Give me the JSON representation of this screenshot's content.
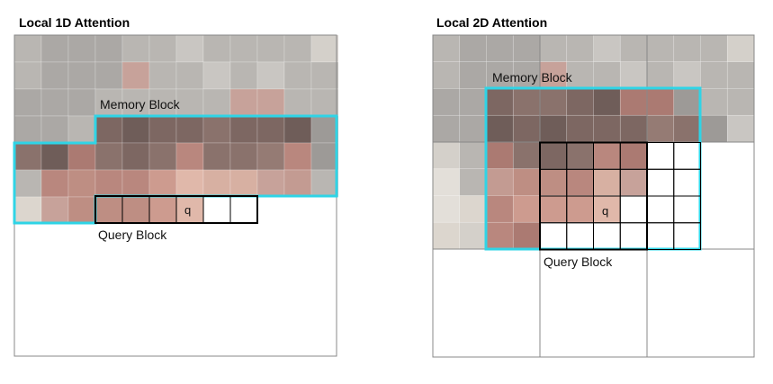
{
  "panels": [
    {
      "title": "Local 1D Attention",
      "memory_label": "Memory Block",
      "query_label": "Query Block",
      "query_symbol": "q"
    },
    {
      "title": "Local 2D Attention",
      "memory_label": "Memory Block",
      "query_label": "Query Block",
      "query_symbol": "q"
    }
  ],
  "colors": {
    "highlight": "#2fd4e6",
    "query_border": "#000000",
    "grid_line": "#888888",
    "cell_line": "#ffffff"
  },
  "palette": {
    "g1": "#c9c6c2",
    "g2": "#b9b6b2",
    "g3": "#aba8a5",
    "g4": "#9d9a97",
    "p1": "#c7a29a",
    "p2": "#c39b92",
    "p3": "#b9877e",
    "p4": "#ab7a72",
    "d1": "#7d6762",
    "d2": "#6f5d59",
    "d3": "#8a726c",
    "d4": "#957b74",
    "s1": "#d7b0a2",
    "s2": "#e0b8aa",
    "s3": "#cd9b8f",
    "s4": "#be8e83",
    "l1": "#e3dfd9",
    "l2": "#d4d0ca",
    "l3": "#dcd6ce",
    "w": "#ffffff"
  },
  "grid1": [
    [
      "g2",
      "g3",
      "g3",
      "g3",
      "g2",
      "g2",
      "g1",
      "g2",
      "g2",
      "g2",
      "g2",
      "l2"
    ],
    [
      "g2",
      "g3",
      "g3",
      "g3",
      "p1",
      "g2",
      "g2",
      "g1",
      "g2",
      "g1",
      "g2",
      "g2"
    ],
    [
      "g3",
      "g3",
      "g3",
      "g2",
      "g2",
      "g2",
      "g2",
      "g2",
      "p1",
      "p1",
      "g2",
      "g2"
    ],
    [
      "g3",
      "g3",
      "g2",
      "d1",
      "d2",
      "d1",
      "d1",
      "d3",
      "d1",
      "d1",
      "d2",
      "g4"
    ],
    [
      "d3",
      "d2",
      "p4",
      "d3",
      "d1",
      "d3",
      "p3",
      "d3",
      "d3",
      "d4",
      "p3",
      "g4"
    ],
    [
      "g2",
      "p3",
      "s4",
      "p3",
      "p3",
      "s3",
      "s2",
      "s1",
      "s1",
      "p1",
      "p2",
      "g2"
    ],
    [
      "l3",
      "p1",
      "s4",
      "s4",
      "s4",
      "s3",
      "s2",
      "w",
      "w",
      "w",
      "w",
      "w"
    ]
  ],
  "grid2": [
    [
      "g2",
      "g3",
      "g3",
      "g3",
      "g2",
      "g2",
      "g1",
      "g2",
      "g2",
      "g2",
      "g2",
      "l2"
    ],
    [
      "g2",
      "g3",
      "g3",
      "g3",
      "p1",
      "g2",
      "g2",
      "g1",
      "g2",
      "g1",
      "g2",
      "g2"
    ],
    [
      "g3",
      "g3",
      "d1",
      "d3",
      "d3",
      "d1",
      "d2",
      "p4",
      "p4",
      "g4",
      "g2",
      "g2"
    ],
    [
      "g3",
      "g3",
      "d2",
      "d1",
      "d2",
      "d1",
      "d1",
      "d1",
      "d4",
      "d3",
      "g4",
      "g1"
    ],
    [
      "l2",
      "g2",
      "p4",
      "d3",
      "d1",
      "d3",
      "p3",
      "p4",
      "w",
      "w",
      "w",
      "w"
    ],
    [
      "l1",
      "g2",
      "p2",
      "s4",
      "s4",
      "p3",
      "s1",
      "p1",
      "w",
      "w",
      "w",
      "w"
    ],
    [
      "l1",
      "l3",
      "p3",
      "s3",
      "s3",
      "s3",
      "s2",
      "w",
      "w",
      "w",
      "w",
      "w"
    ],
    [
      "l3",
      "l2",
      "p3",
      "p4",
      "w",
      "w",
      "w",
      "w",
      "w",
      "w",
      "w",
      "w"
    ]
  ]
}
